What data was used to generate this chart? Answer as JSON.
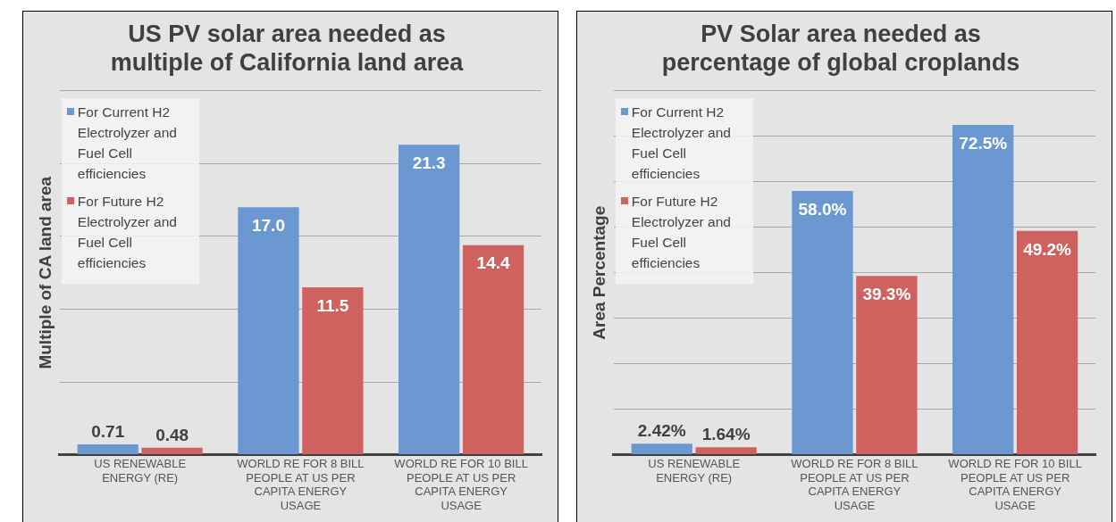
{
  "chart_data": [
    {
      "type": "bar",
      "title": "US PV solar area needed as multiple of California land area",
      "ylabel": "Multiple of CA land area",
      "categories": [
        "US RENEWABLE ENERGY (RE)",
        "WORLD RE FOR 8 BILL PEOPLE AT US PER CAPITA ENERGY USAGE",
        "WORLD RE FOR 10 BILL PEOPLE AT US PER CAPITA ENERGY USAGE"
      ],
      "series": [
        {
          "name": "For Current H2 Electrolyzer and Fuel Cell efficiencies",
          "color": "#6b98d0",
          "values": [
            0.71,
            17.0,
            21.3
          ],
          "value_labels": [
            "0.71",
            "17.0",
            "21.3"
          ]
        },
        {
          "name": "For Future H2 Electrolyzer and Fuel Cell efficiencies",
          "color": "#cf625e",
          "values": [
            0.48,
            11.5,
            14.4
          ],
          "value_labels": [
            "0.48",
            "11.5",
            "14.4"
          ]
        }
      ],
      "ylim": [
        0,
        25
      ],
      "yticks": [
        {
          "value": 0,
          "label": null
        },
        {
          "value": 5,
          "label": null
        },
        {
          "value": 10,
          "label": null
        },
        {
          "value": 15,
          "label": null
        },
        {
          "value": 20,
          "label": null
        },
        {
          "value": 25,
          "label": null
        }
      ],
      "grid": "y",
      "legend": "top left",
      "tick_labels": "x"
    },
    {
      "type": "bar",
      "title": "PV Solar area needed as percentage of global croplands",
      "ylabel": "Area Percentage",
      "categories": [
        "US RENEWABLE ENERGY (RE)",
        "WORLD RE FOR 8 BILL PEOPLE AT US PER CAPITA ENERGY USAGE",
        "WORLD RE FOR 10 BILL PEOPLE AT US PER CAPITA ENERGY USAGE"
      ],
      "series": [
        {
          "name": "For Current H2 Electrolyzer and Fuel Cell efficiencies",
          "color": "#6b98d0",
          "values": [
            2.42,
            58.0,
            72.5
          ],
          "value_labels": [
            "2.42%",
            "58.0%",
            "72.5%"
          ]
        },
        {
          "name": "For Future H2 Electrolyzer and Fuel Cell efficiencies",
          "color": "#cf625e",
          "values": [
            1.64,
            39.3,
            49.2
          ],
          "value_labels": [
            "1.64%",
            "39.3%",
            "49.2%"
          ]
        }
      ],
      "ylim": [
        0,
        80
      ],
      "yticks": [
        {
          "value": 0,
          "label": null
        },
        {
          "value": 10,
          "label": null
        },
        {
          "value": 20,
          "label": null
        },
        {
          "value": 30,
          "label": null
        },
        {
          "value": 40,
          "label": null
        },
        {
          "value": 50,
          "label": null
        },
        {
          "value": 60,
          "label": null
        },
        {
          "value": 70,
          "label": null
        },
        {
          "value": 80,
          "label": null
        }
      ],
      "grid": "y",
      "legend": "top left",
      "tick_labels": "x"
    }
  ]
}
